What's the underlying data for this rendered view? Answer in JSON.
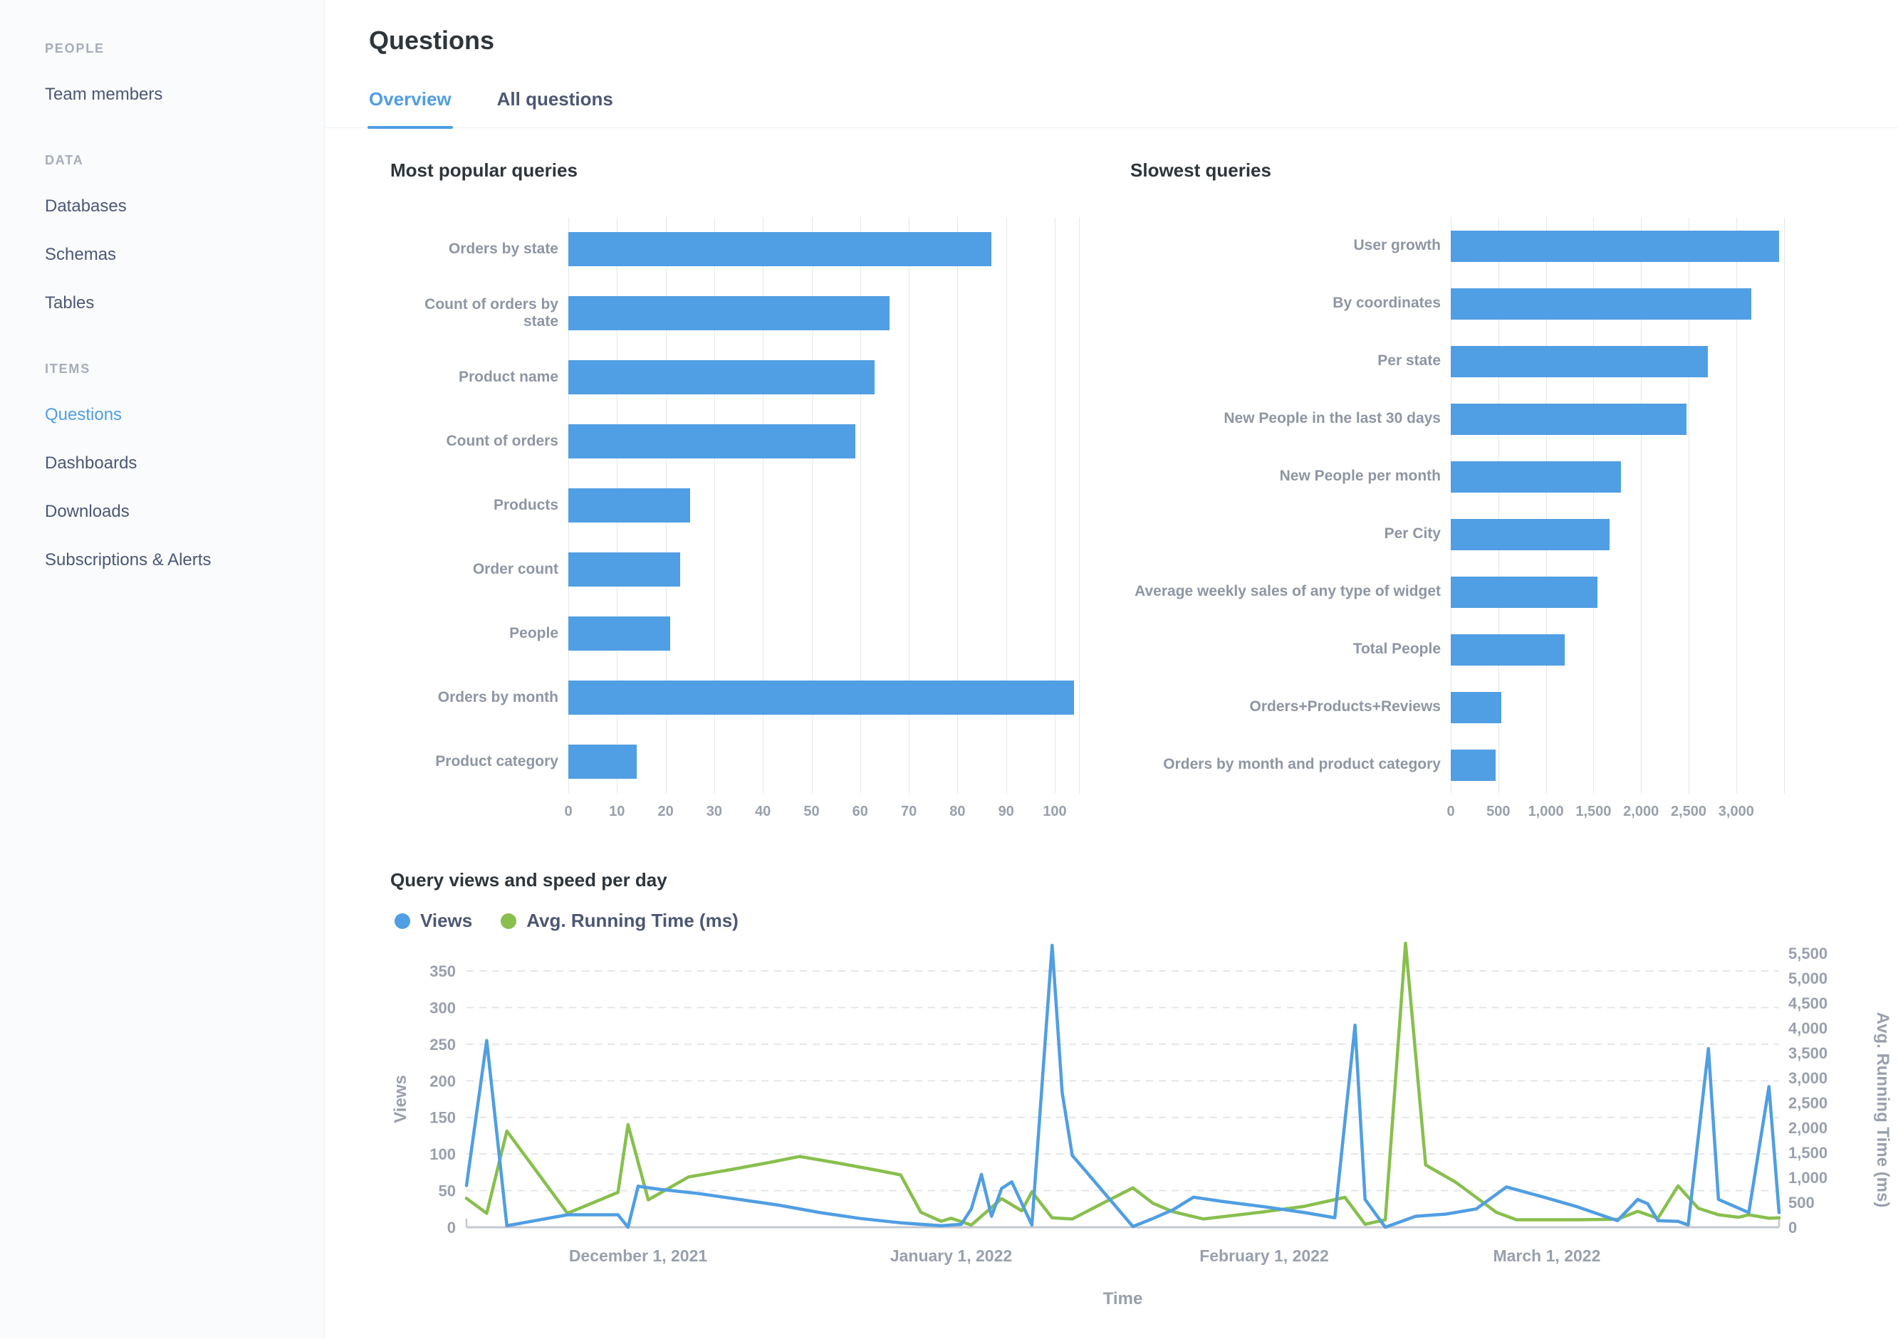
{
  "sidebar": {
    "sections": [
      {
        "header": "PEOPLE",
        "items": [
          {
            "label": "Team members",
            "active": false
          }
        ]
      },
      {
        "header": "DATA",
        "items": [
          {
            "label": "Databases",
            "active": false
          },
          {
            "label": "Schemas",
            "active": false
          },
          {
            "label": "Tables",
            "active": false
          }
        ]
      },
      {
        "header": "ITEMS",
        "items": [
          {
            "label": "Questions",
            "active": true
          },
          {
            "label": "Dashboards",
            "active": false
          },
          {
            "label": "Downloads",
            "active": false
          },
          {
            "label": "Subscriptions & Alerts",
            "active": false
          }
        ]
      }
    ]
  },
  "header": {
    "title": "Questions",
    "tabs": [
      {
        "label": "Overview",
        "active": true
      },
      {
        "label": "All questions",
        "active": false
      }
    ]
  },
  "colors": {
    "brand_blue": "#509EE3",
    "brand_green": "#88BF4D",
    "heading": "#2E353B",
    "label_gray": "#8E96A3",
    "axis_gray": "#99A0AC"
  },
  "chart_data": [
    {
      "id": "most-popular-queries",
      "type": "bar",
      "orientation": "horizontal",
      "title": "Most popular queries",
      "categories": [
        "Orders by state",
        "Count of orders by state",
        "Product name",
        "Count of orders",
        "Products",
        "Order count",
        "People",
        "Orders by month",
        "Product category"
      ],
      "values": [
        87,
        66,
        63,
        59,
        25,
        23,
        21,
        104,
        14
      ],
      "bar_color": "#509EE3",
      "xlim": [
        0,
        105
      ],
      "tick_values": [
        0,
        10,
        20,
        30,
        40,
        50,
        60,
        70,
        80,
        90,
        100
      ],
      "tick_labels": [
        "0",
        "10",
        "20",
        "30",
        "40",
        "50",
        "60",
        "70",
        "80",
        "90",
        "100"
      ],
      "grid": true
    },
    {
      "id": "slowest-queries",
      "type": "bar",
      "orientation": "horizontal",
      "title": "Slowest queries",
      "categories": [
        "User growth",
        "By coordinates",
        "Per state",
        "New People in the last 30 days",
        "New People per month",
        "Per City",
        "Average weekly sales of any type of widget",
        "Total People",
        "Orders+Products+Reviews",
        "Orders by month and product category"
      ],
      "values": [
        3450,
        3160,
        2700,
        2480,
        1790,
        1670,
        1540,
        1200,
        530,
        470
      ],
      "bar_color": "#509EE3",
      "xlim": [
        0,
        3600
      ],
      "tick_values": [
        0,
        500,
        1000,
        1500,
        2000,
        2500,
        3000,
        3500
      ],
      "tick_labels": [
        "0",
        "500",
        "1,000",
        "1,500",
        "2,000",
        "2,500",
        "3,000",
        ""
      ],
      "grid": true
    },
    {
      "id": "query-views-and-speed",
      "type": "line",
      "title": "Query views and speed per day",
      "xlabel": "Time",
      "ylabel_left": "Views",
      "ylabel_right": "Avg. Running Time (ms)",
      "legend": [
        {
          "label": "Views",
          "color": "#509EE3"
        },
        {
          "label": "Avg. Running Time (ms)",
          "color": "#88BF4D"
        }
      ],
      "x_ticks": [
        {
          "date": "2021-12-01",
          "label": "December 1, 2021"
        },
        {
          "date": "2022-01-01",
          "label": "January 1, 2022"
        },
        {
          "date": "2022-02-01",
          "label": "February 1, 2022"
        },
        {
          "date": "2022-03-01",
          "label": "March 1, 2022"
        }
      ],
      "y_left": {
        "min": 0,
        "max": 350,
        "step": 50,
        "tick_labels": [
          "0",
          "50",
          "100",
          "150",
          "200",
          "250",
          "300",
          "350"
        ]
      },
      "y_right": {
        "min": 0,
        "max": 5500,
        "step": 500,
        "tick_labels": [
          "0",
          "500",
          "1,000",
          "1,500",
          "2,000",
          "2,500",
          "3,000",
          "3,500",
          "4,000",
          "4,500",
          "5,000",
          "5,500"
        ]
      },
      "series": [
        {
          "name": "Views",
          "axis": "left",
          "color": "#509EE3",
          "points": [
            [
              "2021-11-14",
              57
            ],
            [
              "2021-11-16",
              255
            ],
            [
              "2021-11-18",
              2
            ],
            [
              "2021-11-24",
              17
            ],
            [
              "2021-11-29",
              17
            ],
            [
              "2021-11-30",
              0
            ],
            [
              "2021-12-01",
              56
            ],
            [
              "2021-12-03",
              52
            ],
            [
              "2021-12-07",
              46
            ],
            [
              "2021-12-11",
              38
            ],
            [
              "2021-12-15",
              30
            ],
            [
              "2021-12-19",
              20
            ],
            [
              "2021-12-23",
              12
            ],
            [
              "2021-12-27",
              6
            ],
            [
              "2021-12-31",
              2
            ],
            [
              "2022-01-02",
              4
            ],
            [
              "2022-01-03",
              25
            ],
            [
              "2022-01-04",
              72
            ],
            [
              "2022-01-05",
              15
            ],
            [
              "2022-01-06",
              53
            ],
            [
              "2022-01-07",
              62
            ],
            [
              "2022-01-09",
              3
            ],
            [
              "2022-01-11",
              385
            ],
            [
              "2022-01-12",
              184
            ],
            [
              "2022-01-13",
              98
            ],
            [
              "2022-01-14",
              82
            ],
            [
              "2022-01-19",
              1
            ],
            [
              "2022-01-21",
              12
            ],
            [
              "2022-01-23",
              24
            ],
            [
              "2022-01-25",
              41
            ],
            [
              "2022-01-28",
              35
            ],
            [
              "2022-02-01",
              28
            ],
            [
              "2022-02-05",
              20
            ],
            [
              "2022-02-08",
              13
            ],
            [
              "2022-02-10",
              276
            ],
            [
              "2022-02-11",
              38
            ],
            [
              "2022-02-13",
              0
            ],
            [
              "2022-02-16",
              15
            ],
            [
              "2022-02-19",
              18
            ],
            [
              "2022-02-22",
              25
            ],
            [
              "2022-02-25",
              55
            ],
            [
              "2022-03-01",
              40
            ],
            [
              "2022-03-04",
              28
            ],
            [
              "2022-03-08",
              9
            ],
            [
              "2022-03-10",
              38
            ],
            [
              "2022-03-11",
              32
            ],
            [
              "2022-03-12",
              9
            ],
            [
              "2022-03-14",
              8
            ],
            [
              "2022-03-15",
              3
            ],
            [
              "2022-03-17",
              244
            ],
            [
              "2022-03-18",
              38
            ],
            [
              "2022-03-21",
              20
            ],
            [
              "2022-03-23",
              192
            ],
            [
              "2022-03-24",
              20
            ]
          ]
        },
        {
          "name": "Avg. Running Time (ms)",
          "axis": "right",
          "color": "#88BF4D",
          "points": [
            [
              "2021-11-14",
              580
            ],
            [
              "2021-11-16",
              280
            ],
            [
              "2021-11-18",
              1930
            ],
            [
              "2021-11-24",
              280
            ],
            [
              "2021-11-29",
              700
            ],
            [
              "2021-11-30",
              2060
            ],
            [
              "2021-12-02",
              550
            ],
            [
              "2021-12-06",
              1010
            ],
            [
              "2021-12-10",
              1150
            ],
            [
              "2021-12-14",
              1300
            ],
            [
              "2021-12-17",
              1420
            ],
            [
              "2021-12-21",
              1280
            ],
            [
              "2021-12-25",
              1130
            ],
            [
              "2021-12-27",
              1050
            ],
            [
              "2021-12-29",
              300
            ],
            [
              "2021-12-31",
              120
            ],
            [
              "2022-01-01",
              180
            ],
            [
              "2022-01-03",
              45
            ],
            [
              "2022-01-06",
              575
            ],
            [
              "2022-01-08",
              330
            ],
            [
              "2022-01-09",
              710
            ],
            [
              "2022-01-11",
              190
            ],
            [
              "2022-01-13",
              165
            ],
            [
              "2022-01-16",
              480
            ],
            [
              "2022-01-19",
              790
            ],
            [
              "2022-01-21",
              480
            ],
            [
              "2022-01-23",
              310
            ],
            [
              "2022-01-26",
              165
            ],
            [
              "2022-02-01",
              310
            ],
            [
              "2022-02-05",
              420
            ],
            [
              "2022-02-09",
              600
            ],
            [
              "2022-02-11",
              60
            ],
            [
              "2022-02-13",
              150
            ],
            [
              "2022-02-15",
              5700
            ],
            [
              "2022-02-17",
              1250
            ],
            [
              "2022-02-20",
              900
            ],
            [
              "2022-02-22",
              600
            ],
            [
              "2022-02-24",
              300
            ],
            [
              "2022-02-26",
              150
            ],
            [
              "2022-03-01",
              150
            ],
            [
              "2022-03-04",
              150
            ],
            [
              "2022-03-08",
              160
            ],
            [
              "2022-03-10",
              320
            ],
            [
              "2022-03-12",
              180
            ],
            [
              "2022-03-14",
              830
            ],
            [
              "2022-03-16",
              380
            ],
            [
              "2022-03-18",
              250
            ],
            [
              "2022-03-20",
              200
            ],
            [
              "2022-03-21",
              250
            ],
            [
              "2022-03-23",
              180
            ],
            [
              "2022-03-24",
              190
            ]
          ]
        }
      ]
    }
  ]
}
